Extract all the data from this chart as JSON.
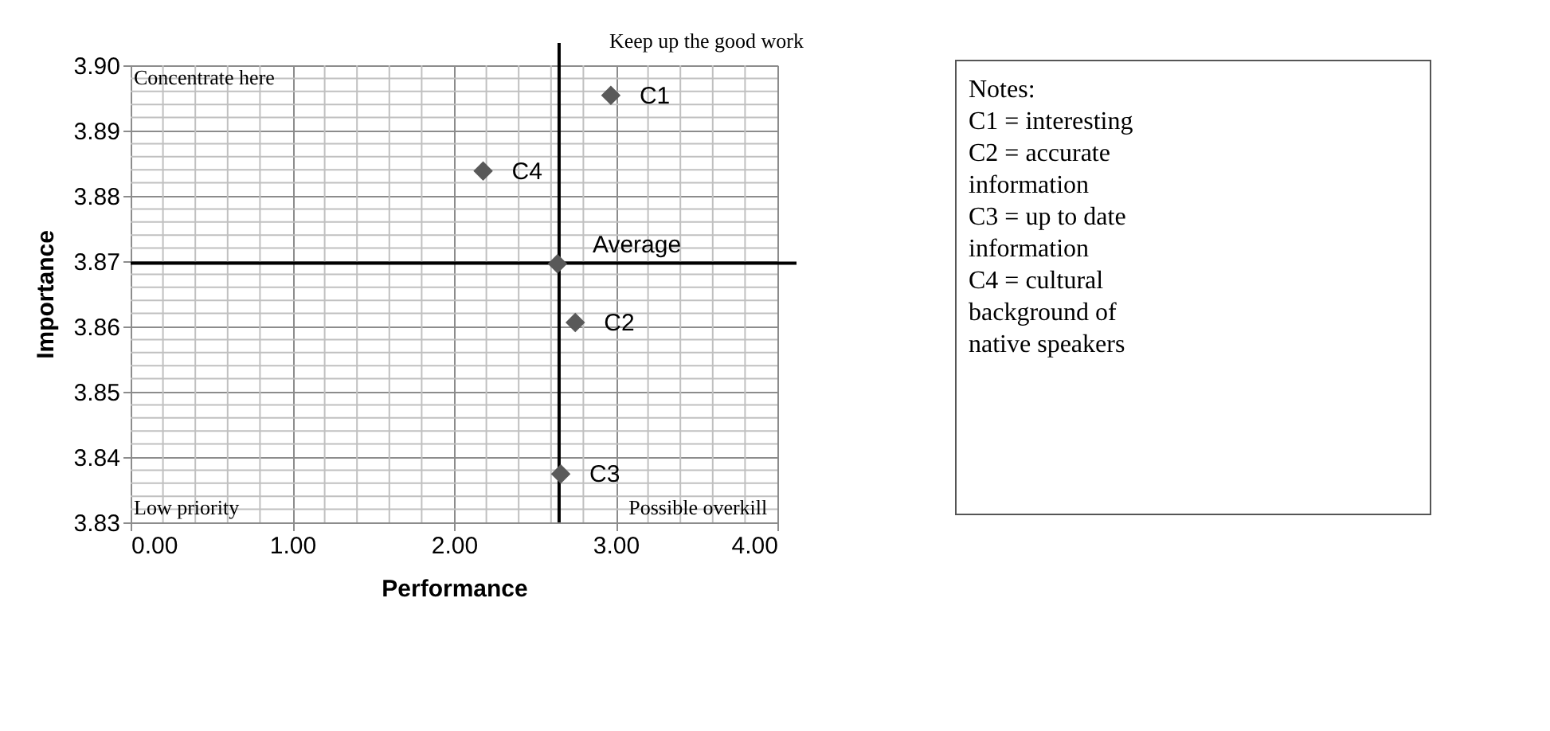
{
  "chart_data": {
    "type": "scatter",
    "xlabel": "Performance",
    "ylabel": "Importance",
    "xlim": [
      0,
      4
    ],
    "ylim": [
      3.83,
      3.9
    ],
    "xticks": [
      {
        "value": 0,
        "label": "0.00"
      },
      {
        "value": 1,
        "label": "1.00"
      },
      {
        "value": 2,
        "label": "2.00"
      },
      {
        "value": 3,
        "label": "3.00"
      },
      {
        "value": 4,
        "label": "4.00"
      }
    ],
    "yticks": [
      {
        "value": 3.83,
        "label": "3.83"
      },
      {
        "value": 3.84,
        "label": "3.84"
      },
      {
        "value": 3.85,
        "label": "3.85"
      },
      {
        "value": 3.86,
        "label": "3.86"
      },
      {
        "value": 3.87,
        "label": "3.87"
      },
      {
        "value": 3.88,
        "label": "3.88"
      },
      {
        "value": 3.89,
        "label": "3.89"
      },
      {
        "value": 3.9,
        "label": "3.90"
      }
    ],
    "grid": true,
    "marker": "diamond",
    "series": [
      {
        "name": "C1",
        "color": "#595959",
        "x": [
          2.97
        ],
        "values": [
          3.8954
        ]
      },
      {
        "name": "C2",
        "color": "#595959",
        "x": [
          2.75
        ],
        "values": [
          3.8606
        ]
      },
      {
        "name": "C3",
        "color": "#595959",
        "x": [
          2.66
        ],
        "values": [
          3.8374
        ]
      },
      {
        "name": "C4",
        "color": "#595959",
        "x": [
          2.18
        ],
        "values": [
          3.8838
        ]
      },
      {
        "name": "Average",
        "color": "#595959",
        "x": [
          2.64
        ],
        "values": [
          3.8696
        ]
      }
    ],
    "ref_lines": [
      {
        "axis": "x",
        "value": 2.65,
        "color": "#000000"
      },
      {
        "axis": "y",
        "value": 3.8697,
        "color": "#000000"
      }
    ],
    "annotations": [
      "Keep up the good work",
      "Concentrate here",
      "Low priority",
      "Possible overkill",
      "Notes:\nC1 = interesting\nC2  = accurate\n      information\nC3 = up to date\n      information\nC4 = cultural\n      background of\n      native speakers"
    ]
  }
}
